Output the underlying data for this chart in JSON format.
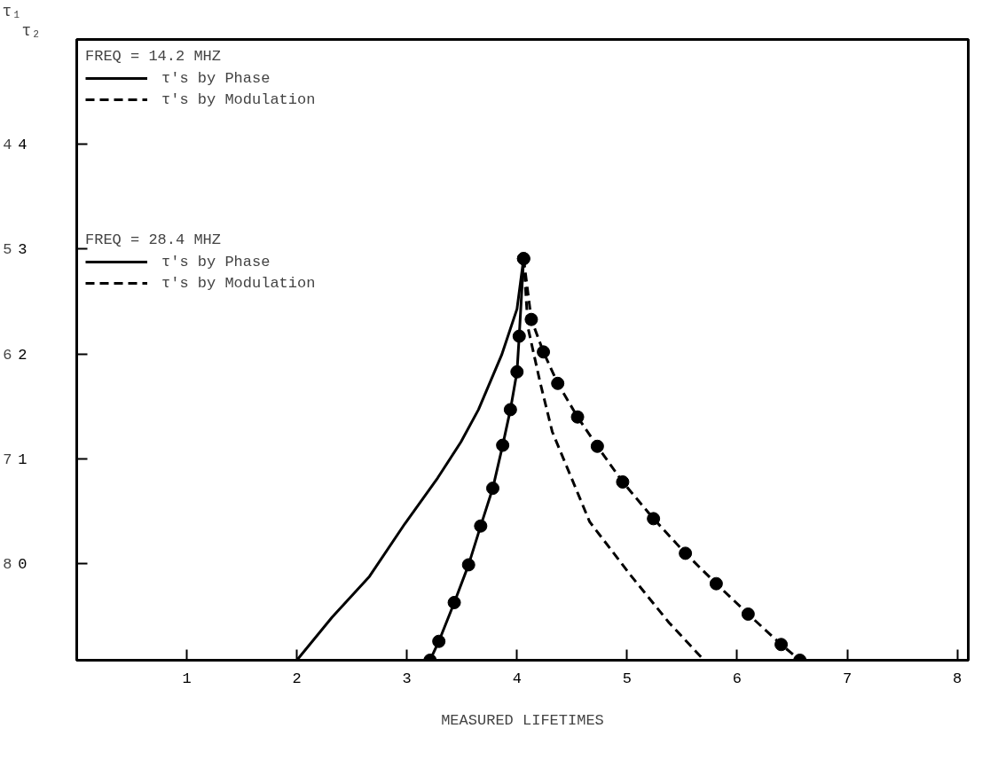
{
  "chart_data": {
    "type": "line",
    "xlabel": "MEASURED LIFETIMES",
    "ylabel": "τ₂",
    "y2label": "τ₁",
    "xlim": [
      0,
      8.1
    ],
    "xticks": [
      1,
      2,
      3,
      4,
      5,
      6,
      7,
      8
    ],
    "ylim": [
      -0.92,
      5
    ],
    "yticks": [
      0,
      1,
      2,
      3,
      4
    ],
    "y2lim": [
      8.92,
      3
    ],
    "y2ticks": [
      4,
      5,
      6,
      7,
      8
    ],
    "legend": "top left",
    "legend_title": [
      "FREQ = 14.2 MHZ",
      "FREQ = 28.4 MHZ"
    ],
    "grid": false,
    "series": [
      {
        "name": "τ's by Phase",
        "color": "#000000",
        "marker": "circle",
        "line_style": "solid",
        "x": [
          3.21,
          3.29,
          3.43,
          3.56,
          3.67,
          3.78,
          3.87,
          3.94,
          4.0,
          4.02,
          4.06
        ],
        "values": [
          -0.92,
          -0.74,
          -0.37,
          -0.01,
          0.36,
          0.72,
          1.13,
          1.47,
          1.83,
          2.17,
          2.91
        ]
      },
      {
        "name": "τ's by Modulation",
        "color": "#000000",
        "marker": "circle",
        "line_style": "dashed",
        "x": [
          4.06,
          4.13,
          4.24,
          4.37,
          4.55,
          4.73,
          4.96,
          5.24,
          5.53,
          5.81,
          6.1,
          6.4,
          6.57
        ],
        "values": [
          2.91,
          2.33,
          2.02,
          1.72,
          1.4,
          1.12,
          0.78,
          0.43,
          0.1,
          -0.19,
          -0.48,
          -0.77,
          -0.92
        ]
      },
      {
        "name": "τ's by Phase",
        "color": "#000000",
        "marker": "none",
        "line_style": "solid",
        "x": [
          2.0,
          2.32,
          2.66,
          2.98,
          3.28,
          3.49,
          3.65,
          3.86,
          4.0,
          4.06
        ],
        "values": [
          -0.92,
          -0.51,
          -0.12,
          0.38,
          0.82,
          1.16,
          1.47,
          1.99,
          2.43,
          2.91
        ]
      },
      {
        "name": "τ's by Modulation",
        "color": "#000000",
        "marker": "none",
        "line_style": "dashed",
        "x": [
          4.06,
          4.1,
          4.21,
          4.32,
          4.66,
          5.04,
          5.38,
          5.7
        ],
        "values": [
          2.91,
          2.25,
          1.73,
          1.26,
          0.4,
          -0.12,
          -0.56,
          -0.92
        ]
      }
    ]
  }
}
